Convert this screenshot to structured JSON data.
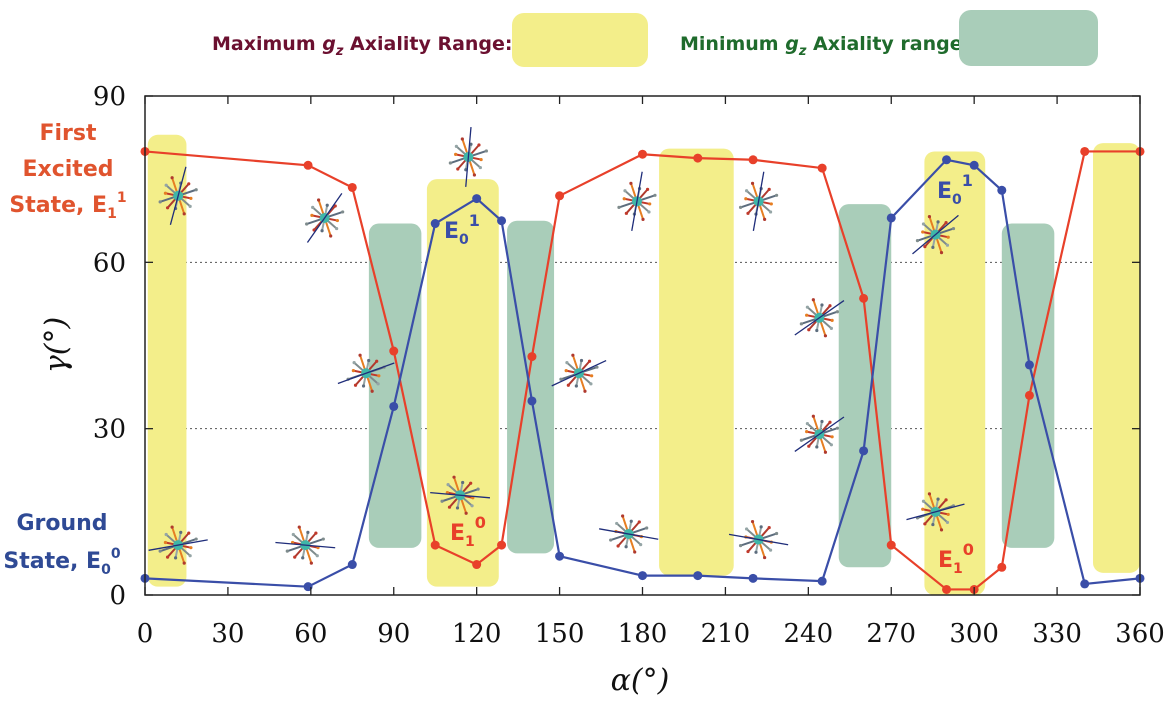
{
  "colors": {
    "max_range_fill": "#f3ee8a",
    "min_range_fill": "#a9cdb9",
    "ground_curve": "#3a4ea8",
    "excited_curve": "#e8402a",
    "max_legend_text": "#6b1030",
    "min_legend_text": "#1f6b2c",
    "ground_text": "#2f4a95",
    "excited_text": "#e0542e"
  },
  "legend": {
    "max_label_prefix": "Maximum ",
    "max_label_var": "g",
    "max_label_sub": "z",
    "max_label_suffix": " Axiality Range:",
    "min_label_prefix": "Minimum ",
    "min_label_var": "g",
    "min_label_sub": "z",
    "min_label_suffix": " Axiality range:"
  },
  "state_labels": {
    "excited_line1": "First",
    "excited_line2": "Excited",
    "excited_line3": "State, E",
    "excited_sub": "1",
    "excited_sup": "1",
    "ground_line1": "Ground",
    "ground_line2": "State, E",
    "ground_sub": "0",
    "ground_sup": "0"
  },
  "curve_labels": {
    "e01_a": {
      "base": "E",
      "sub": "0",
      "sup": "1"
    },
    "e10_a": {
      "base": "E",
      "sub": "1",
      "sup": "0"
    },
    "e01_b": {
      "base": "E",
      "sub": "0",
      "sup": "1"
    },
    "e10_b": {
      "base": "E",
      "sub": "1",
      "sup": "0"
    }
  },
  "chart_data": {
    "type": "line",
    "xlabel": "α(°)",
    "ylabel": "γ(°)",
    "xlim": [
      0,
      360
    ],
    "ylim": [
      0,
      90
    ],
    "xticks": [
      0,
      30,
      60,
      90,
      120,
      150,
      180,
      210,
      240,
      270,
      300,
      330,
      360
    ],
    "yticks": [
      0,
      30,
      60,
      90
    ],
    "grid": "horizontal dotted at 30 and 60",
    "series": [
      {
        "color_key": "excited_curve",
        "x": [
          0,
          59,
          75,
          90,
          105,
          120,
          129,
          140,
          150,
          180,
          200,
          220,
          245,
          260,
          270,
          290,
          300,
          310,
          320,
          340,
          360
        ],
        "y": [
          80,
          77.5,
          73.5,
          44,
          9,
          5.5,
          9,
          43,
          72,
          79.5,
          78.8,
          78.5,
          77,
          53.5,
          9,
          1,
          1,
          5,
          36,
          80,
          80
        ]
      },
      {
        "color_key": "ground_curve",
        "x": [
          0,
          59,
          75,
          90,
          105,
          120,
          129,
          140,
          150,
          180,
          200,
          220,
          245,
          260,
          270,
          290,
          300,
          310,
          320,
          340,
          360
        ],
        "y": [
          3,
          1.5,
          5.5,
          34,
          67,
          71.5,
          67.5,
          35,
          7,
          3.5,
          3.5,
          3,
          2.5,
          26,
          68,
          78.5,
          77.5,
          73,
          41.5,
          2,
          3
        ]
      }
    ],
    "shaded_ranges": [
      {
        "kind": "max",
        "x": [
          1,
          15
        ],
        "y": [
          1.5,
          83
        ]
      },
      {
        "kind": "min",
        "x": [
          81,
          100
        ],
        "y": [
          8.5,
          67
        ]
      },
      {
        "kind": "max",
        "x": [
          102,
          128
        ],
        "y": [
          1.5,
          75
        ]
      },
      {
        "kind": "min",
        "x": [
          131,
          148
        ],
        "y": [
          7.5,
          67.5
        ]
      },
      {
        "kind": "max",
        "x": [
          186,
          213
        ],
        "y": [
          3.5,
          80.5
        ]
      },
      {
        "kind": "min",
        "x": [
          251,
          270
        ],
        "y": [
          5,
          70.5
        ]
      },
      {
        "kind": "max",
        "x": [
          282,
          304
        ],
        "y": [
          0,
          80
        ]
      },
      {
        "kind": "min",
        "x": [
          310,
          329
        ],
        "y": [
          8.5,
          67
        ]
      },
      {
        "kind": "max",
        "x": [
          343,
          360
        ],
        "y": [
          4,
          81.5
        ]
      }
    ],
    "molecule_icons": [
      {
        "x": 12,
        "y": 72,
        "angle": -75
      },
      {
        "x": 12,
        "y": 9,
        "angle": -10
      },
      {
        "x": 65,
        "y": 68,
        "angle": -55
      },
      {
        "x": 58,
        "y": 9,
        "angle": 5
      },
      {
        "x": 80,
        "y": 40,
        "angle": -20
      },
      {
        "x": 117,
        "y": 79,
        "angle": -85
      },
      {
        "x": 114,
        "y": 18,
        "angle": 5
      },
      {
        "x": 157,
        "y": 40,
        "angle": -25
      },
      {
        "x": 178,
        "y": 71,
        "angle": -80
      },
      {
        "x": 175,
        "y": 11,
        "angle": 10
      },
      {
        "x": 222,
        "y": 71,
        "angle": -80
      },
      {
        "x": 222,
        "y": 10,
        "angle": 10
      },
      {
        "x": 244,
        "y": 50,
        "angle": -35
      },
      {
        "x": 244,
        "y": 29,
        "angle": -35
      },
      {
        "x": 286,
        "y": 65,
        "angle": -40
      },
      {
        "x": 286,
        "y": 15,
        "angle": -15
      }
    ]
  }
}
